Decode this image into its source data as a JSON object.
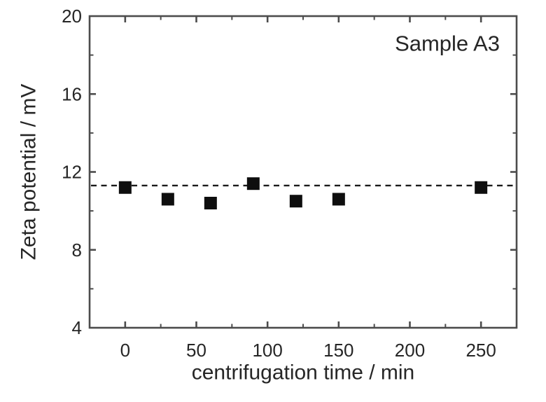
{
  "figure": {
    "annotation": "Sample A3"
  },
  "chart_data": {
    "type": "scatter",
    "title": "",
    "annotation": "Sample A3",
    "xlabel": "centrifugation time / min",
    "ylabel": "Zeta potential / mV",
    "xlim": [
      -25,
      275
    ],
    "ylim": [
      4,
      20
    ],
    "x_major_ticks": [
      0,
      50,
      100,
      150,
      200,
      250
    ],
    "x_tick_labels": [
      "0",
      "50",
      "100",
      "150",
      "200",
      "250"
    ],
    "x_minor_ticks": [
      25,
      75,
      125,
      175,
      225
    ],
    "y_major_ticks": [
      4,
      8,
      12,
      16,
      20
    ],
    "y_tick_labels": [
      "4",
      "8",
      "12",
      "16",
      "20"
    ],
    "y_minor_ticks": [
      6,
      10,
      14,
      18
    ],
    "grid": false,
    "legend": "none",
    "series": [
      {
        "name": "Sample A3",
        "marker": "square",
        "x": [
          0,
          30,
          60,
          90,
          120,
          150,
          250
        ],
        "values": [
          11.2,
          10.6,
          10.4,
          11.4,
          10.5,
          10.6,
          11.2
        ]
      }
    ],
    "reference_line": {
      "value": 11.3,
      "style": "dashed",
      "orientation": "horizontal"
    },
    "colors": {
      "background": "#ffffff",
      "axis": "#4c4c4c",
      "text": "#262626",
      "marker": "#0e0e0e",
      "reference_line": "#1a1a1a"
    }
  }
}
